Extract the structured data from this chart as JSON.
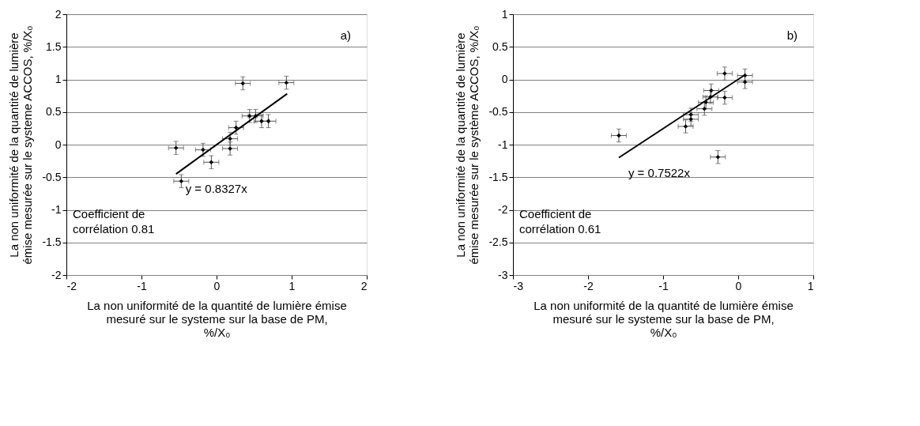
{
  "chart_data": [
    {
      "type": "scatter",
      "xlabel": "La non uniformité de la quantité de lumière émise\nmesuré sur le systeme sur la base de PM,\n%/X₀",
      "ylabel": "La non uniformité de la quantité de lumière\némise mesurée sur le systeme ACCOS, %/X₀",
      "xlim": [
        -2,
        2
      ],
      "ylim": [
        -2,
        2
      ],
      "xticks": [
        -2,
        -1,
        0,
        1,
        2
      ],
      "yticks": [
        -2,
        -1.5,
        -1,
        -0.5,
        0,
        0.5,
        1,
        1.5,
        2
      ],
      "grid": "y",
      "marker": "diamond",
      "legend": false,
      "annotations": [
        "a)",
        "Coefficient de\ncorrélation 0.81",
        {
          "text": "y = 0.8327x",
          "x": -0.54,
          "y": -0.45
        }
      ],
      "series": [
        {
          "color": "#000000",
          "x": [
            -0.54,
            -0.47,
            -0.18,
            -0.07,
            0.18,
            0.18,
            0.26,
            0.35,
            0.44,
            0.52,
            0.6,
            0.69,
            0.93
          ],
          "values": [
            -0.05,
            -0.56,
            -0.08,
            -0.27,
            0.09,
            -0.06,
            0.26,
            0.94,
            0.44,
            0.44,
            0.36,
            0.36,
            0.95
          ],
          "errors": [
            0.1,
            0.1,
            0.1,
            0.1,
            0.1,
            0.1,
            0.1,
            0.1,
            0.1,
            0.1,
            0.1,
            0.1,
            0.1
          ],
          "xerrors": [
            0.1,
            0.1,
            0.1,
            0.1,
            0.1,
            0.1,
            0.1,
            0.1,
            0.1,
            0.1,
            0.1,
            0.1,
            0.1
          ]
        },
        {
          "type": "line",
          "color": "#000000",
          "marker": "none",
          "line_style": "solid",
          "x": [
            -0.54,
            0.94
          ],
          "values": [
            -0.45,
            0.78
          ]
        }
      ]
    },
    {
      "type": "scatter",
      "xlabel": "La non uniformité de la quantité de lumière émise\nmesuré sur le systeme sur la base de PM,\n%/X₀",
      "ylabel": "La non uniformité de la quantité de lumière\némise mesurée sur le système ACCOS, %/X₀",
      "xlim": [
        -3,
        1
      ],
      "ylim": [
        -3,
        1
      ],
      "xticks": [
        -3,
        -2,
        -1,
        0,
        1
      ],
      "yticks": [
        -3,
        -2.5,
        -2,
        -1.5,
        -1,
        -0.5,
        0,
        0.5,
        1
      ],
      "grid": "y",
      "marker": "diamond",
      "legend": false,
      "annotations": [
        "b)",
        "Coefficient de\ncorrélation 0.61",
        {
          "text": "y = 0.7522x",
          "x": -1.59,
          "y": -1.2
        }
      ],
      "series": [
        {
          "color": "#000000",
          "x": [
            -1.59,
            -0.7,
            -0.63,
            -0.63,
            -0.45,
            -0.43,
            -0.37,
            -0.36,
            -0.18,
            -0.27,
            -0.18,
            0.09,
            0.09
          ],
          "values": [
            -0.86,
            -0.72,
            -0.61,
            -0.54,
            -0.45,
            -0.35,
            -0.27,
            -0.17,
            -0.28,
            -1.19,
            0.09,
            0.06,
            -0.04
          ],
          "errors": [
            0.1,
            0.1,
            0.1,
            0.1,
            0.1,
            0.1,
            0.1,
            0.1,
            0.1,
            0.1,
            0.1,
            0.1,
            0.1
          ],
          "xerrors": [
            0.1,
            0.1,
            0.1,
            0.1,
            0.1,
            0.1,
            0.1,
            0.1,
            0.1,
            0.1,
            0.1,
            0.1,
            0.1
          ]
        },
        {
          "type": "line",
          "color": "#000000",
          "marker": "none",
          "line_style": "solid",
          "x": [
            -1.59,
            0.09
          ],
          "values": [
            -1.2,
            0.07
          ]
        }
      ]
    }
  ]
}
